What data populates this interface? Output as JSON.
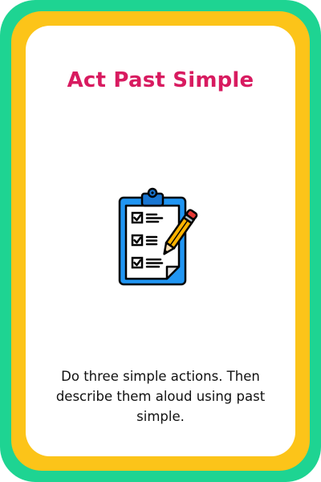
{
  "card": {
    "title": "Act Past Simple",
    "icon": "clipboard-checklist-pencil-icon",
    "description": "Do three simple actions. Then describe them aloud using past simple.",
    "colors": {
      "outer_border": "#1ed492",
      "inner_border": "#fcc419",
      "title": "#d81b60",
      "clipboard": "#2196f3"
    }
  }
}
